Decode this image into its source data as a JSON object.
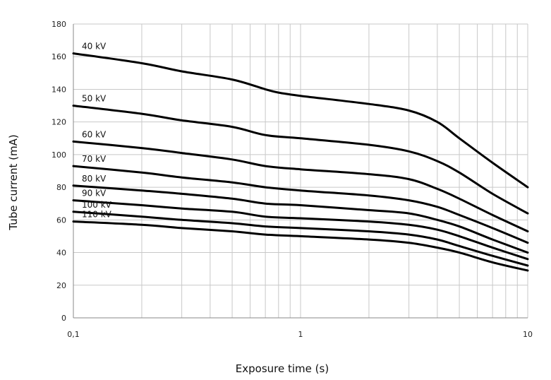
{
  "chart_data": {
    "type": "line",
    "title": "",
    "xlabel": "Exposure time (s)",
    "ylabel": "Tube current (mA)",
    "x_scale": "log",
    "xlim": [
      0.1,
      10
    ],
    "ylim": [
      0,
      180
    ],
    "grid": true,
    "x_ticks": [
      {
        "value": 0.1,
        "label": "0,1"
      },
      {
        "value": 1,
        "label": "1"
      },
      {
        "value": 10,
        "label": "10"
      }
    ],
    "y_ticks": [
      0,
      20,
      40,
      60,
      80,
      100,
      120,
      140,
      160,
      180
    ],
    "line_color": "#000000",
    "series": [
      {
        "name": "40 kV",
        "points": [
          [
            0.1,
            162
          ],
          [
            0.2,
            156
          ],
          [
            0.3,
            151
          ],
          [
            0.5,
            146
          ],
          [
            0.7,
            140
          ],
          [
            0.8,
            138
          ],
          [
            1,
            136
          ],
          [
            2,
            131
          ],
          [
            3,
            127
          ],
          [
            4,
            120
          ],
          [
            5,
            110
          ],
          [
            7,
            95
          ],
          [
            10,
            80
          ]
        ]
      },
      {
        "name": "50 kV",
        "points": [
          [
            0.1,
            130
          ],
          [
            0.2,
            125
          ],
          [
            0.3,
            121
          ],
          [
            0.5,
            117
          ],
          [
            0.7,
            112
          ],
          [
            1,
            110
          ],
          [
            2,
            106
          ],
          [
            3,
            102
          ],
          [
            4,
            96
          ],
          [
            5,
            89
          ],
          [
            7,
            76
          ],
          [
            10,
            64
          ]
        ]
      },
      {
        "name": "60 kV",
        "points": [
          [
            0.1,
            108
          ],
          [
            0.2,
            104
          ],
          [
            0.3,
            101
          ],
          [
            0.5,
            97
          ],
          [
            0.7,
            93
          ],
          [
            1,
            91
          ],
          [
            2,
            88
          ],
          [
            3,
            85
          ],
          [
            4,
            79
          ],
          [
            5,
            73
          ],
          [
            7,
            63
          ],
          [
            10,
            53
          ]
        ]
      },
      {
        "name": "70 kV",
        "points": [
          [
            0.1,
            93
          ],
          [
            0.2,
            89
          ],
          [
            0.3,
            86
          ],
          [
            0.5,
            83
          ],
          [
            0.7,
            80
          ],
          [
            1,
            78
          ],
          [
            2,
            75
          ],
          [
            3,
            72
          ],
          [
            4,
            68
          ],
          [
            5,
            63
          ],
          [
            7,
            55
          ],
          [
            10,
            46
          ]
        ]
      },
      {
        "name": "80 kV",
        "points": [
          [
            0.1,
            81
          ],
          [
            0.2,
            78
          ],
          [
            0.3,
            76
          ],
          [
            0.5,
            73
          ],
          [
            0.7,
            70
          ],
          [
            1,
            69
          ],
          [
            2,
            66
          ],
          [
            3,
            64
          ],
          [
            4,
            60
          ],
          [
            5,
            56
          ],
          [
            7,
            48
          ],
          [
            10,
            40
          ]
        ]
      },
      {
        "name": "90 kV",
        "points": [
          [
            0.1,
            72
          ],
          [
            0.2,
            69
          ],
          [
            0.3,
            67
          ],
          [
            0.5,
            65
          ],
          [
            0.7,
            62
          ],
          [
            1,
            61
          ],
          [
            2,
            59
          ],
          [
            3,
            57
          ],
          [
            4,
            54
          ],
          [
            5,
            50
          ],
          [
            7,
            43
          ],
          [
            10,
            36
          ]
        ]
      },
      {
        "name": "100 kV",
        "points": [
          [
            0.1,
            65
          ],
          [
            0.2,
            62
          ],
          [
            0.3,
            60
          ],
          [
            0.5,
            58
          ],
          [
            0.7,
            56
          ],
          [
            1,
            55
          ],
          [
            2,
            53
          ],
          [
            3,
            51
          ],
          [
            4,
            48
          ],
          [
            5,
            44
          ],
          [
            7,
            38
          ],
          [
            10,
            32
          ]
        ]
      },
      {
        "name": "110 kV",
        "points": [
          [
            0.1,
            59
          ],
          [
            0.2,
            57
          ],
          [
            0.3,
            55
          ],
          [
            0.5,
            53
          ],
          [
            0.7,
            51
          ],
          [
            1,
            50
          ],
          [
            2,
            48
          ],
          [
            3,
            46
          ],
          [
            4,
            43
          ],
          [
            5,
            40
          ],
          [
            7,
            34
          ],
          [
            10,
            29
          ]
        ]
      }
    ]
  }
}
